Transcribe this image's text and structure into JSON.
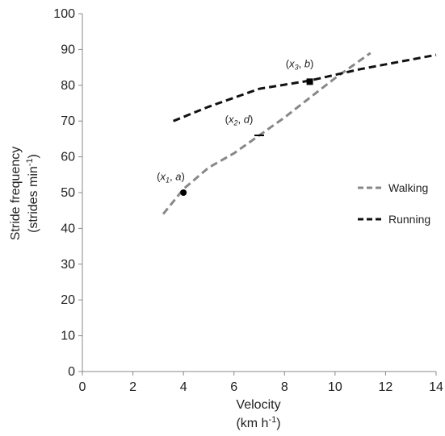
{
  "chart_data": {
    "type": "line",
    "title": "",
    "xlabel_line1": "Velocity",
    "xlabel_line2_prefix": "(km h",
    "xlabel_line2_sup": "-1",
    "xlabel_line2_suffix": ")",
    "ylabel_line1": "Stride frequency",
    "ylabel_line2_prefix": "(strides min",
    "ylabel_line2_sup": "-1",
    "ylabel_line2_suffix": ")",
    "xlim": [
      0,
      14
    ],
    "ylim": [
      0,
      100
    ],
    "x_ticks": [
      0,
      2,
      4,
      6,
      8,
      10,
      12,
      14
    ],
    "x_tick_labels": [
      "0",
      "2",
      "4",
      "6",
      "8",
      "10",
      "12",
      "14"
    ],
    "y_ticks": [
      0,
      10,
      20,
      30,
      40,
      50,
      60,
      70,
      80,
      90,
      100
    ],
    "y_tick_labels": [
      "0",
      "10",
      "20",
      "30",
      "40",
      "50",
      "60",
      "70",
      "80",
      "90",
      "100"
    ],
    "grid": false,
    "legend_position": "right",
    "series": [
      {
        "name": "Walking",
        "color": "#888888",
        "dash": "dashed",
        "x": [
          3.2,
          4.0,
          5.0,
          6.0,
          7.0,
          8.0,
          9.0,
          10.0,
          11.4
        ],
        "y": [
          44,
          51,
          57,
          61,
          66,
          71,
          76.5,
          82,
          89
        ]
      },
      {
        "name": "Running",
        "color": "#111111",
        "dash": "dashed",
        "x": [
          3.6,
          5.0,
          7.0,
          9.0,
          11.0,
          14.0
        ],
        "y": [
          70,
          74,
          79,
          81.3,
          84.5,
          88.5
        ]
      }
    ],
    "markers": [
      {
        "shape": "circle",
        "x": 4.0,
        "y": 50
      },
      {
        "shape": "dash",
        "x": 7.0,
        "y": 66
      },
      {
        "shape": "square",
        "x": 9.0,
        "y": 81
      }
    ],
    "annotations": [
      {
        "var": "x",
        "sub": "1",
        "param": "a",
        "x": 3.5,
        "y": 53.5
      },
      {
        "var": "x",
        "sub": "2",
        "param": "d",
        "x": 6.2,
        "y": 69.5
      },
      {
        "var": "x",
        "sub": "3",
        "param": "b",
        "x": 8.6,
        "y": 85
      }
    ]
  }
}
